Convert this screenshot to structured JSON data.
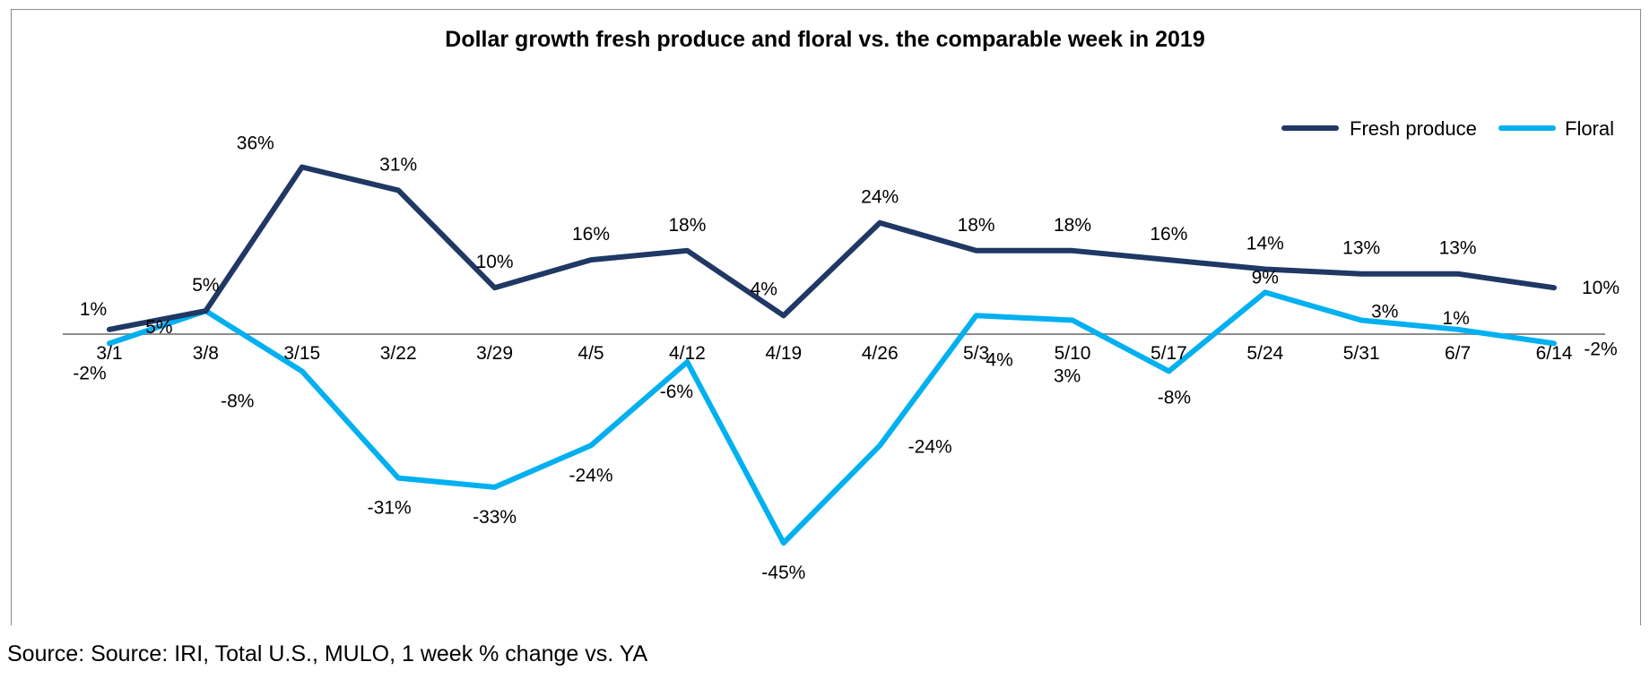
{
  "chart_data": {
    "type": "line",
    "title": "Dollar growth fresh produce and floral vs. the comparable week in 2019",
    "categories": [
      "3/1",
      "3/8",
      "3/15",
      "3/22",
      "3/29",
      "4/5",
      "4/12",
      "4/19",
      "4/26",
      "5/3",
      "5/10",
      "5/17",
      "5/24",
      "5/31",
      "6/7",
      "6/14"
    ],
    "series": [
      {
        "name": "Fresh produce",
        "color": "#1f3864",
        "values": [
          1,
          5,
          36,
          31,
          10,
          16,
          18,
          4,
          24,
          18,
          18,
          16,
          14,
          13,
          13,
          10
        ],
        "labels": [
          "1%",
          "5%",
          "36%",
          "31%",
          "10%",
          "16%",
          "18%",
          "4%",
          "24%",
          "18%",
          "18%",
          "16%",
          "14%",
          "13%",
          "13%",
          "10%"
        ]
      },
      {
        "name": "Floral",
        "color": "#00b0f0",
        "values": [
          -2,
          5,
          -8,
          -31,
          -33,
          -24,
          -6,
          -45,
          -24,
          4,
          3,
          -8,
          9,
          3,
          1,
          -2
        ],
        "labels": [
          "-2%",
          "5%",
          "-8%",
          "-31%",
          "-33%",
          "-24%",
          "-6%",
          "-45%",
          "-24%",
          "4%",
          "3%",
          "-8%",
          "9%",
          "3%",
          "1%",
          "-2%"
        ]
      }
    ],
    "legend_position": "top-right",
    "grid": false
  },
  "source": "Source: Source: IRI, Total U.S., MULO, 1 week % change vs. YA"
}
